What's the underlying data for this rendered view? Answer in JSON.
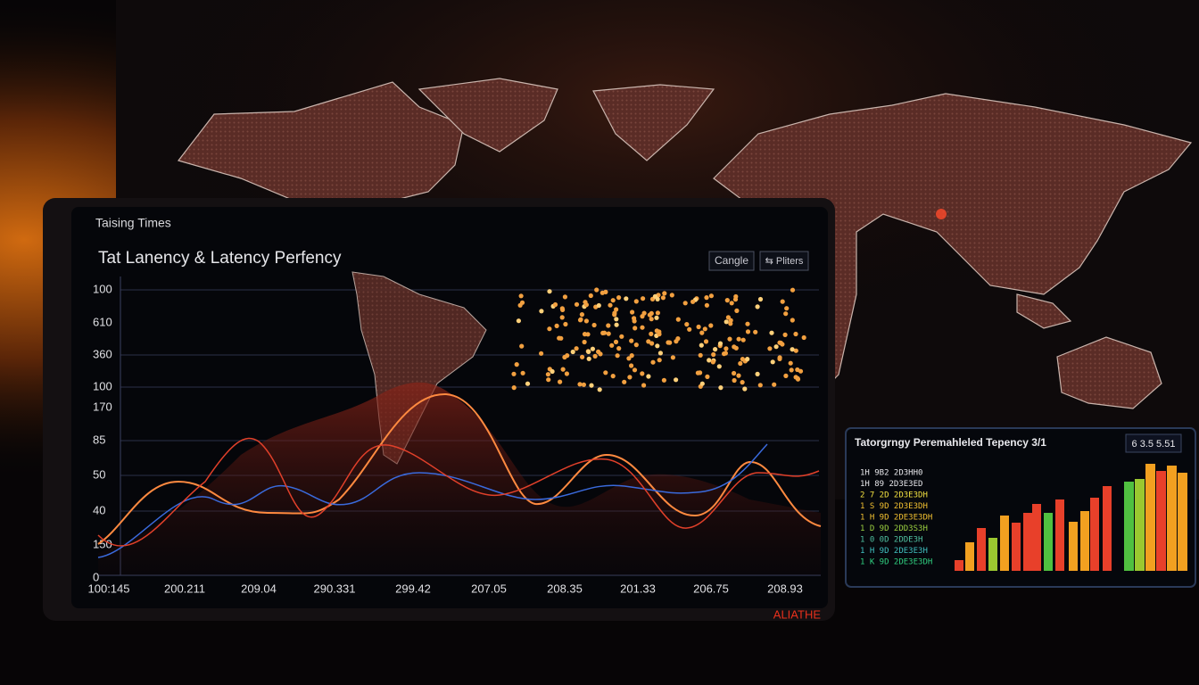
{
  "header": {
    "title": "Taising Times",
    "subtitle": "Tat Lanency & Latency Perfency"
  },
  "buttons": [
    "Cangle",
    "⇆ Pliters"
  ],
  "y_labels": [
    "100",
    "610",
    "360",
    "100",
    "170",
    "85",
    "50",
    "40",
    "150",
    "0"
  ],
  "x_labels": [
    "100:145",
    "200.211",
    "209.04",
    "290.331",
    "299.42",
    "207.05",
    "208.35",
    "201.33",
    "206.75",
    "208.93"
  ],
  "side_panel": {
    "title": "Tatorgrngy Peremahleled Tepency 3/1",
    "value": "6 3.5 5.51",
    "rows": [
      "1H 9B2  2D3HH0",
      "1H 89  2D3E3ED",
      "2 7 2D  2D3E3DH",
      "1 S 9D  2D3E3DH",
      "1 H 9D  2DE3E3DH",
      "1 D 9D  2DD3S3H",
      "1 0 0D  2DDE3H",
      "1 H 9D  2DE3E3H",
      "1 K 9D  2DE3E3DH"
    ]
  },
  "brand": "ALIATHE"
}
